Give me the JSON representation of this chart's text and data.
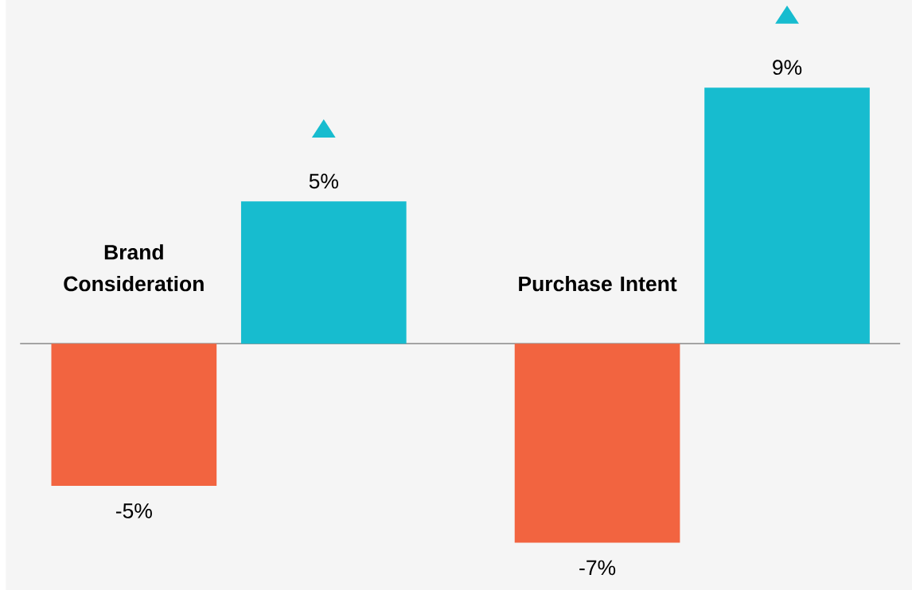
{
  "chart_data": {
    "type": "bar",
    "categories": [
      "Brand Consideration",
      "Purchase Intent"
    ],
    "series": [
      {
        "color": "#f26440",
        "values": [
          -5,
          -7
        ],
        "value_labels": [
          "-5%",
          "-7%"
        ]
      },
      {
        "color": "#17bccf",
        "values": [
          5,
          9
        ],
        "value_labels": [
          "5%",
          "9%"
        ]
      }
    ],
    "legend": false
  }
}
